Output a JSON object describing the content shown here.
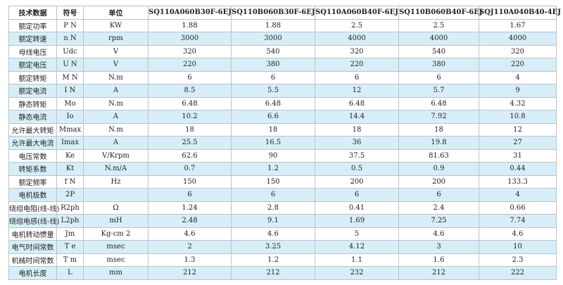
{
  "table": {
    "header": [
      "技术数据",
      "符号",
      "单位",
      "SQ110A060B30F-6EJ",
      "SQ110B060B30F-6EJ",
      "SQ110A060B40F-6EJ",
      "SQ110B060B40F-6EJ",
      "SQJ110A040B40-4EJ"
    ],
    "rows": [
      [
        "额定功率",
        "P N",
        "KW",
        "1.88",
        "1.88",
        "2.5",
        "2.5",
        "1.67"
      ],
      [
        "额定转速",
        "n N",
        "rpm",
        "3000",
        "3000",
        "4000",
        "4000",
        "4000"
      ],
      [
        "母线电压",
        "Udc",
        "V",
        "320",
        "540",
        "320",
        "540",
        "320"
      ],
      [
        "额定电压",
        "U N",
        "V",
        "220",
        "380",
        "220",
        "380",
        "220"
      ],
      [
        "额定转矩",
        "M N",
        "N.m",
        "6",
        "6",
        "6",
        "6",
        "4"
      ],
      [
        "额定电流",
        "I N",
        "A",
        "8.5",
        "5.5",
        "12",
        "5.7",
        "9"
      ],
      [
        "静态转矩",
        "Mo",
        "N.m",
        "6.48",
        "6.48",
        "6.48",
        "6.48",
        "4.32"
      ],
      [
        "静态电流",
        "Io",
        "A",
        "10.2",
        "6.6",
        "14.4",
        "7.92",
        "10.8"
      ],
      [
        "允许最大转矩",
        "Mmax",
        "N.m",
        "18",
        "18",
        "18",
        "18",
        "12"
      ],
      [
        "允许最大电流",
        "Imax",
        "A",
        "25.5",
        "16.5",
        "36",
        "19.8",
        "27"
      ],
      [
        "电压常数",
        "Ke",
        "V/Krpm",
        "62.6",
        "90",
        "37.5",
        "81.63",
        "31"
      ],
      [
        "转矩系数",
        "Kt",
        "N.m/A",
        "0.7",
        "1.2",
        "0.5",
        "0.9",
        "0.44"
      ],
      [
        "额定频率",
        "f N",
        "Hz",
        "150",
        "150",
        "200",
        "200",
        "133.3"
      ],
      [
        "电机极数",
        "2P",
        null,
        "6",
        "6",
        "6",
        "6",
        "4"
      ],
      [
        "绕组电阻(线-线)",
        "R2ph",
        "Ω",
        "1.24",
        "2.8",
        "0.41",
        "2.4",
        "0.66"
      ],
      [
        "绕组电感(线-线)",
        "L2ph",
        "mH",
        "2.48",
        "9.1",
        "1.69",
        "7.25",
        "7.74"
      ],
      [
        "电机转动惯量",
        "Jm",
        "Kg·cm 2",
        "4.6",
        "4.6",
        "5",
        "4.6",
        "4.6"
      ],
      [
        "电气时间常数",
        "T e",
        "msec",
        "2",
        "3.25",
        "4.12",
        "3",
        "10"
      ],
      [
        "机械时间常数",
        "T m",
        "msec",
        "1.3",
        "1.2",
        "1.1",
        "1.6",
        "2.3"
      ],
      [
        "电机长度",
        "L",
        "mm",
        "212",
        "212",
        "232",
        "212",
        "222"
      ]
    ]
  }
}
